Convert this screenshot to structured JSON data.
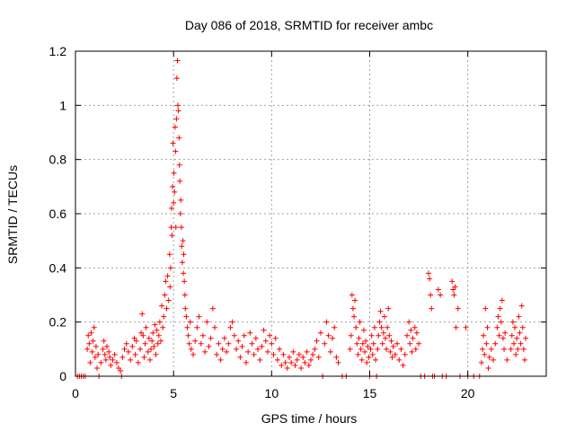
{
  "chart_data": {
    "type": "scatter",
    "title": "Day 086 of 2018, SRMTID for receiver ambc",
    "xlabel": "GPS time / hours",
    "ylabel": "SRMTID / TECUs",
    "xlim": [
      0,
      24
    ],
    "ylim": [
      0,
      1.2
    ],
    "xticks": [
      0,
      5,
      10,
      15,
      20
    ],
    "yticks": [
      0,
      0.2,
      0.4,
      0.6,
      0.8,
      1,
      1.2
    ],
    "xtick_labels": [
      "0",
      "5",
      "10",
      "15",
      "20"
    ],
    "ytick_labels": [
      "0",
      "0.2",
      "0.4",
      "0.6",
      "0.8",
      "1",
      "1.2"
    ],
    "grid": true,
    "legend": "none",
    "marker": "+",
    "color": "#ff0000",
    "series": [
      {
        "points": [
          [
            0.1,
            0
          ],
          [
            0.2,
            0
          ],
          [
            0.3,
            0
          ],
          [
            0.4,
            0
          ],
          [
            0.5,
            0
          ],
          [
            0.6,
            0.1
          ],
          [
            0.65,
            0.15
          ],
          [
            0.7,
            0.12
          ],
          [
            0.75,
            0.05
          ],
          [
            0.8,
            0.16
          ],
          [
            0.85,
            0.09
          ],
          [
            0.9,
            0.13
          ],
          [
            0.95,
            0.18
          ],
          [
            1.0,
            0.07
          ],
          [
            1.05,
            0.11
          ],
          [
            1.1,
            0.03
          ],
          [
            1.15,
            0.08
          ],
          [
            1.2,
            0
          ],
          [
            1.3,
            0.05
          ],
          [
            1.4,
            0.1
          ],
          [
            1.45,
            0.13
          ],
          [
            1.5,
            0.08
          ],
          [
            1.55,
            0.06
          ],
          [
            1.6,
            0.11
          ],
          [
            1.7,
            0.09
          ],
          [
            1.75,
            0.07
          ],
          [
            1.8,
            0.04
          ],
          [
            1.9,
            0.06
          ],
          [
            2.0,
            0.08
          ],
          [
            2.1,
            0.05
          ],
          [
            2.2,
            0.03
          ],
          [
            2.3,
            0.02
          ],
          [
            2.35,
            0
          ],
          [
            2.4,
            0.07
          ],
          [
            2.5,
            0.1
          ],
          [
            2.6,
            0.12
          ],
          [
            2.7,
            0.09
          ],
          [
            2.8,
            0.06
          ],
          [
            2.9,
            0.11
          ],
          [
            3.0,
            0.14
          ],
          [
            3.05,
            0.08
          ],
          [
            3.1,
            0.13
          ],
          [
            3.2,
            0.05
          ],
          [
            3.3,
            0.1
          ],
          [
            3.35,
            0.16
          ],
          [
            3.4,
            0.23
          ],
          [
            3.45,
            0.15
          ],
          [
            3.5,
            0.07
          ],
          [
            3.55,
            0.12
          ],
          [
            3.6,
            0.18
          ],
          [
            3.7,
            0.09
          ],
          [
            3.75,
            0.14
          ],
          [
            3.8,
            0.06
          ],
          [
            3.85,
            0.1
          ],
          [
            3.9,
            0.13
          ],
          [
            3.95,
            0.16
          ],
          [
            4.0,
            0.11
          ],
          [
            4.05,
            0.19
          ],
          [
            4.1,
            0.08
          ],
          [
            4.15,
            0.17
          ],
          [
            4.2,
            0.12
          ],
          [
            4.25,
            0.15
          ],
          [
            4.3,
            0.2
          ],
          [
            4.35,
            0.13
          ],
          [
            4.4,
            0.26
          ],
          [
            4.45,
            0.18
          ],
          [
            4.5,
            0.22
          ],
          [
            4.55,
            0.3
          ],
          [
            4.6,
            0.35
          ],
          [
            4.65,
            0.25
          ],
          [
            4.7,
            0.37
          ],
          [
            4.75,
            0.28
          ],
          [
            4.8,
            0.45
          ],
          [
            4.82,
            0.33
          ],
          [
            4.85,
            0.4
          ],
          [
            4.88,
            0.55
          ],
          [
            4.9,
            0.62
          ],
          [
            4.92,
            0.52
          ],
          [
            4.95,
            0.7
          ],
          [
            4.97,
            0.86
          ],
          [
            5.0,
            0.64
          ],
          [
            5.02,
            0.75
          ],
          [
            5.05,
            0.68
          ],
          [
            5.08,
            0.92
          ],
          [
            5.1,
            0.83
          ],
          [
            5.12,
            0.55
          ],
          [
            5.15,
            0.95
          ],
          [
            5.17,
            1.1
          ],
          [
            5.2,
            1.165
          ],
          [
            5.22,
            1.0
          ],
          [
            5.25,
            0.98
          ],
          [
            5.28,
            0.88
          ],
          [
            5.3,
            0.78
          ],
          [
            5.32,
            0.72
          ],
          [
            5.35,
            0.6
          ],
          [
            5.37,
            0.65
          ],
          [
            5.4,
            0.55
          ],
          [
            5.42,
            0.48
          ],
          [
            5.45,
            0.42
          ],
          [
            5.48,
            0.5
          ],
          [
            5.5,
            0.38
          ],
          [
            5.52,
            0.45
          ],
          [
            5.55,
            0.35
          ],
          [
            5.58,
            0.3
          ],
          [
            5.6,
            0.25
          ],
          [
            5.65,
            0.22
          ],
          [
            5.7,
            0.18
          ],
          [
            5.75,
            0.15
          ],
          [
            5.8,
            0.12
          ],
          [
            5.85,
            0.2
          ],
          [
            5.9,
            0.1
          ],
          [
            6.0,
            0.08
          ],
          [
            6.1,
            0.13
          ],
          [
            6.2,
            0.18
          ],
          [
            6.3,
            0.22
          ],
          [
            6.4,
            0.12
          ],
          [
            6.5,
            0.15
          ],
          [
            6.6,
            0.09
          ],
          [
            6.7,
            0.2
          ],
          [
            6.8,
            0.11
          ],
          [
            6.9,
            0.14
          ],
          [
            7.0,
            0.25
          ],
          [
            7.1,
            0.18
          ],
          [
            7.2,
            0.08
          ],
          [
            7.3,
            0.12
          ],
          [
            7.4,
            0.06
          ],
          [
            7.5,
            0.1
          ],
          [
            7.6,
            0.14
          ],
          [
            7.7,
            0.09
          ],
          [
            7.8,
            0.12
          ],
          [
            7.9,
            0.18
          ],
          [
            8.0,
            0.2
          ],
          [
            8.1,
            0.15
          ],
          [
            8.2,
            0.1
          ],
          [
            8.3,
            0.13
          ],
          [
            8.4,
            0.07
          ],
          [
            8.5,
            0.11
          ],
          [
            8.6,
            0.15
          ],
          [
            8.7,
            0.05
          ],
          [
            8.8,
            0.09
          ],
          [
            8.9,
            0.16
          ],
          [
            9.0,
            0.12
          ],
          [
            9.1,
            0.08
          ],
          [
            9.2,
            0.14
          ],
          [
            9.3,
            0.1
          ],
          [
            9.4,
            0.06
          ],
          [
            9.5,
            0.11
          ],
          [
            9.6,
            0.17
          ],
          [
            9.7,
            0.13
          ],
          [
            9.8,
            0.09
          ],
          [
            9.9,
            0.15
          ],
          [
            10.0,
            0.12
          ],
          [
            10.1,
            0.08
          ],
          [
            10.2,
            0.14
          ],
          [
            10.3,
            0.06
          ],
          [
            10.4,
            0.1
          ],
          [
            10.5,
            0.04
          ],
          [
            10.6,
            0.08
          ],
          [
            10.7,
            0.05
          ],
          [
            10.8,
            0.03
          ],
          [
            10.9,
            0.07
          ],
          [
            11.0,
            0.05
          ],
          [
            11.1,
            0.09
          ],
          [
            11.2,
            0.04
          ],
          [
            11.3,
            0.06
          ],
          [
            11.4,
            0.08
          ],
          [
            11.5,
            0.03
          ],
          [
            11.6,
            0.07
          ],
          [
            11.7,
            0.05
          ],
          [
            11.8,
            0.09
          ],
          [
            11.9,
            0.04
          ],
          [
            12.0,
            0.06
          ],
          [
            12.1,
            0.08
          ],
          [
            12.2,
            0.1
          ],
          [
            12.3,
            0.13
          ],
          [
            12.4,
            0.07
          ],
          [
            12.5,
            0.16
          ],
          [
            12.6,
            0
          ],
          [
            12.7,
            0.12
          ],
          [
            12.8,
            0.2
          ],
          [
            12.9,
            0.15
          ],
          [
            13.0,
            0.09
          ],
          [
            13.1,
            0.14
          ],
          [
            13.2,
            0.18
          ],
          [
            13.3,
            0.07
          ],
          [
            13.4,
            0.05
          ],
          [
            13.6,
            0
          ],
          [
            13.8,
            0
          ],
          [
            14.0,
            0.1
          ],
          [
            14.05,
            0.15
          ],
          [
            14.1,
            0.3
          ],
          [
            14.15,
            0.25
          ],
          [
            14.2,
            0.22
          ],
          [
            14.25,
            0.28
          ],
          [
            14.3,
            0.18
          ],
          [
            14.35,
            0.12
          ],
          [
            14.4,
            0.08
          ],
          [
            14.45,
            0.14
          ],
          [
            14.5,
            0.2
          ],
          [
            14.55,
            0.1
          ],
          [
            14.6,
            0.06
          ],
          [
            14.65,
            0.12
          ],
          [
            14.7,
            0.17
          ],
          [
            14.75,
            0.09
          ],
          [
            14.8,
            0.13
          ],
          [
            14.85,
            0.05
          ],
          [
            14.9,
            0.11
          ],
          [
            14.95,
            0.07
          ],
          [
            15.0,
            0
          ],
          [
            15.05,
            0.1
          ],
          [
            15.1,
            0.15
          ],
          [
            15.15,
            0.08
          ],
          [
            15.2,
            0.12
          ],
          [
            15.25,
            0.18
          ],
          [
            15.3,
            0.06
          ],
          [
            15.35,
            0
          ],
          [
            15.4,
            0.1
          ],
          [
            15.45,
            0.15
          ],
          [
            15.5,
            0.2
          ],
          [
            15.55,
            0.24
          ],
          [
            15.6,
            0.18
          ],
          [
            15.65,
            0.12
          ],
          [
            15.7,
            0.16
          ],
          [
            15.75,
            0.22
          ],
          [
            15.8,
            0.14
          ],
          [
            15.85,
            0.1
          ],
          [
            15.9,
            0.18
          ],
          [
            15.95,
            0.25
          ],
          [
            16.0,
            0.15
          ],
          [
            16.05,
            0.09
          ],
          [
            16.1,
            0.13
          ],
          [
            16.15,
            0.07
          ],
          [
            16.2,
            0.11
          ],
          [
            16.3,
            0.08
          ],
          [
            16.4,
            0.12
          ],
          [
            16.5,
            0.06
          ],
          [
            16.6,
            0.1
          ],
          [
            16.7,
            0.04
          ],
          [
            16.8,
            0.08
          ],
          [
            16.9,
            0.15
          ],
          [
            17.0,
            0.2
          ],
          [
            17.05,
            0.12
          ],
          [
            17.1,
            0.17
          ],
          [
            17.15,
            0.09
          ],
          [
            17.2,
            0.14
          ],
          [
            17.3,
            0.18
          ],
          [
            17.35,
            0.1
          ],
          [
            17.4,
            0.16
          ],
          [
            17.5,
            0.12
          ],
          [
            17.6,
            0
          ],
          [
            17.8,
            0
          ],
          [
            18.0,
            0.38
          ],
          [
            18.05,
            0.36
          ],
          [
            18.1,
            0.3
          ],
          [
            18.15,
            0.25
          ],
          [
            18.2,
            0
          ],
          [
            18.3,
            0
          ],
          [
            18.5,
            0.32
          ],
          [
            18.6,
            0.3
          ],
          [
            18.7,
            0
          ],
          [
            18.9,
            0
          ],
          [
            19.2,
            0.35
          ],
          [
            19.25,
            0.32
          ],
          [
            19.3,
            0.3
          ],
          [
            19.35,
            0.33
          ],
          [
            19.4,
            0.18
          ],
          [
            19.5,
            0.25
          ],
          [
            19.6,
            0
          ],
          [
            19.9,
            0.18
          ],
          [
            20.0,
            0
          ],
          [
            20.3,
            0
          ],
          [
            20.6,
            0
          ],
          [
            20.7,
            0.05
          ],
          [
            20.75,
            0.1
          ],
          [
            20.8,
            0.15
          ],
          [
            20.85,
            0.08
          ],
          [
            20.9,
            0.25
          ],
          [
            20.95,
            0.12
          ],
          [
            21.0,
            0.18
          ],
          [
            21.05,
            0.03
          ],
          [
            21.1,
            0.07
          ],
          [
            21.2,
            0.1
          ],
          [
            21.3,
            0.06
          ],
          [
            21.4,
            0.12
          ],
          [
            21.5,
            0.18
          ],
          [
            21.55,
            0.22
          ],
          [
            21.6,
            0.15
          ],
          [
            21.65,
            0.25
          ],
          [
            21.7,
            0.2
          ],
          [
            21.75,
            0.28
          ],
          [
            21.8,
            0.14
          ],
          [
            21.85,
            0.1
          ],
          [
            21.9,
            0.16
          ],
          [
            22.0,
            0.06
          ],
          [
            22.2,
            0.1
          ],
          [
            22.25,
            0.15
          ],
          [
            22.3,
            0.2
          ],
          [
            22.35,
            0.12
          ],
          [
            22.4,
            0.18
          ],
          [
            22.45,
            0.08
          ],
          [
            22.5,
            0.14
          ],
          [
            22.55,
            0.1
          ],
          [
            22.6,
            0.22
          ],
          [
            22.65,
            0.16
          ],
          [
            22.7,
            0.12
          ],
          [
            22.75,
            0.26
          ],
          [
            22.8,
            0.18
          ],
          [
            22.85,
            0.1
          ],
          [
            22.9,
            0.06
          ],
          [
            22.95,
            0.14
          ]
        ]
      }
    ]
  }
}
